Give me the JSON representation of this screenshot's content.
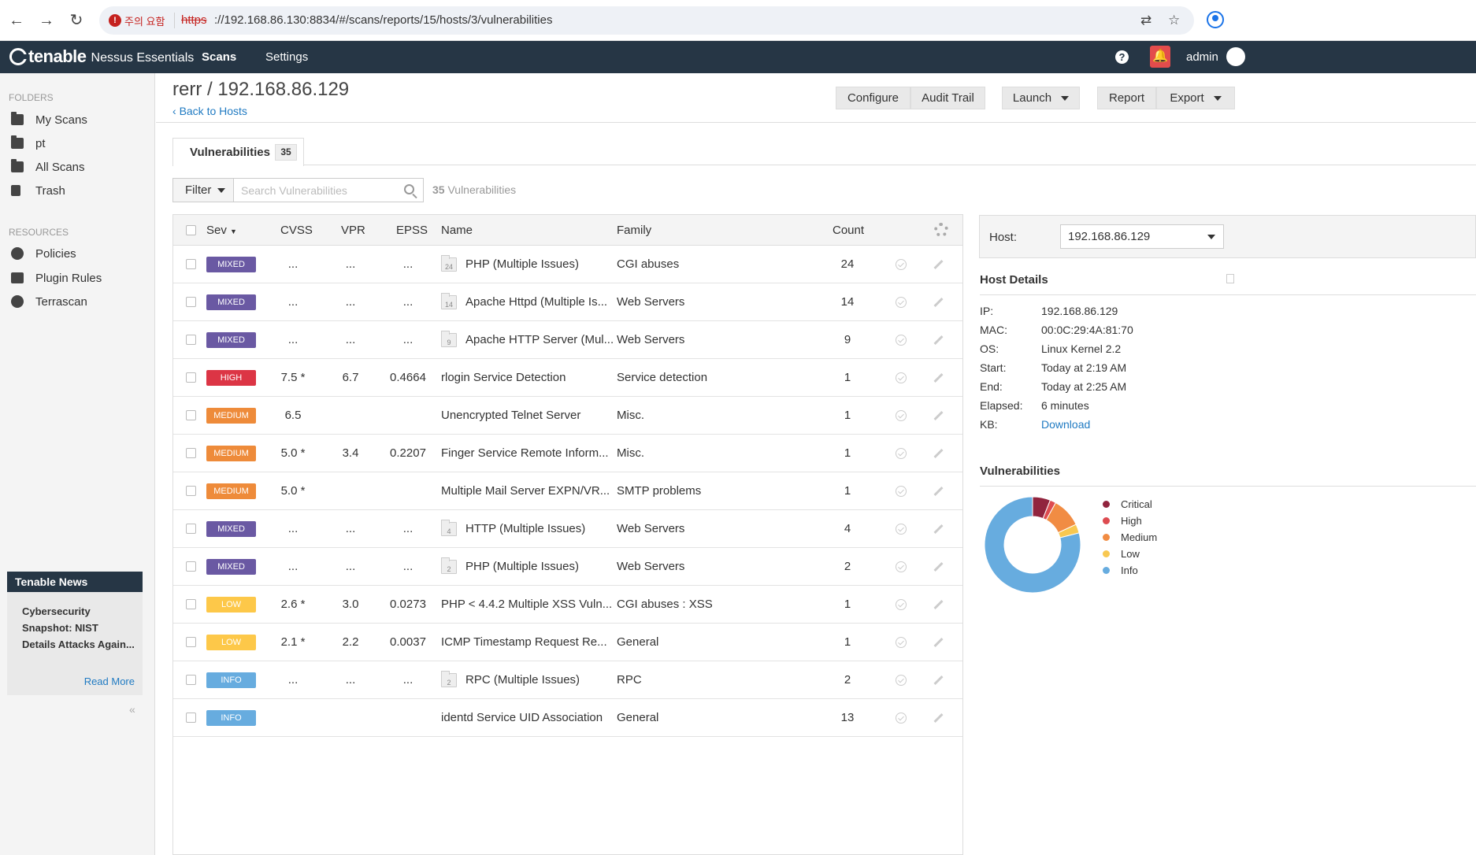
{
  "browser": {
    "warning": "주의 요함",
    "url_scheme": "https",
    "url_rest": "://192.168.86.130:8834/#/scans/reports/15/hosts/3/vulnerabilities"
  },
  "header": {
    "logo": "tenable",
    "product": "Nessus Essentials",
    "nav": [
      "Scans",
      "Settings"
    ],
    "user": "admin"
  },
  "sidebar": {
    "folders_label": "FOLDERS",
    "folders": [
      "My Scans",
      "pt",
      "All Scans",
      "Trash"
    ],
    "resources_label": "RESOURCES",
    "resources": [
      "Policies",
      "Plugin Rules",
      "Terrascan"
    ],
    "news_title": "Tenable News",
    "news_body": "Cybersecurity Snapshot: NIST Details Attacks Again...",
    "news_more": "Read More"
  },
  "main": {
    "title": "rerr / 192.168.86.129",
    "back": "Back to Hosts",
    "buttons": {
      "configure": "Configure",
      "audit": "Audit Trail",
      "launch": "Launch",
      "report": "Report",
      "export": "Export"
    },
    "tab_label": "Vulnerabilities",
    "tab_count": "35",
    "filter": "Filter",
    "search_placeholder": "Search Vulnerabilities",
    "count_num": "35",
    "count_label": "Vulnerabilities"
  },
  "table": {
    "headers": {
      "sev": "Sev",
      "cvss": "CVSS",
      "vpr": "VPR",
      "epss": "EPSS",
      "name": "Name",
      "family": "Family",
      "count": "Count"
    },
    "rows": [
      {
        "sev": "MIXED",
        "cvss": "...",
        "vpr": "...",
        "epss": "...",
        "group": "24",
        "name": "PHP (Multiple Issues)",
        "family": "CGI abuses",
        "count": "24"
      },
      {
        "sev": "MIXED",
        "cvss": "...",
        "vpr": "...",
        "epss": "...",
        "group": "14",
        "name": "Apache Httpd (Multiple Is...",
        "family": "Web Servers",
        "count": "14"
      },
      {
        "sev": "MIXED",
        "cvss": "...",
        "vpr": "...",
        "epss": "...",
        "group": "9",
        "name": "Apache HTTP Server (Mul...",
        "family": "Web Servers",
        "count": "9"
      },
      {
        "sev": "HIGH",
        "cvss": "7.5 *",
        "vpr": "6.7",
        "epss": "0.4664",
        "group": "",
        "name": "rlogin Service Detection",
        "family": "Service detection",
        "count": "1"
      },
      {
        "sev": "MEDIUM",
        "cvss": "6.5",
        "vpr": "",
        "epss": "",
        "group": "",
        "name": "Unencrypted Telnet Server",
        "family": "Misc.",
        "count": "1"
      },
      {
        "sev": "MEDIUM",
        "cvss": "5.0 *",
        "vpr": "3.4",
        "epss": "0.2207",
        "group": "",
        "name": "Finger Service Remote Inform...",
        "family": "Misc.",
        "count": "1"
      },
      {
        "sev": "MEDIUM",
        "cvss": "5.0 *",
        "vpr": "",
        "epss": "",
        "group": "",
        "name": "Multiple Mail Server EXPN/VR...",
        "family": "SMTP problems",
        "count": "1"
      },
      {
        "sev": "MIXED",
        "cvss": "...",
        "vpr": "...",
        "epss": "...",
        "group": "4",
        "name": "HTTP (Multiple Issues)",
        "family": "Web Servers",
        "count": "4"
      },
      {
        "sev": "MIXED",
        "cvss": "...",
        "vpr": "...",
        "epss": "...",
        "group": "2",
        "name": "PHP (Multiple Issues)",
        "family": "Web Servers",
        "count": "2"
      },
      {
        "sev": "LOW",
        "cvss": "2.6 *",
        "vpr": "3.0",
        "epss": "0.0273",
        "group": "",
        "name": "PHP < 4.4.2 Multiple XSS Vuln...",
        "family": "CGI abuses : XSS",
        "count": "1"
      },
      {
        "sev": "LOW",
        "cvss": "2.1 *",
        "vpr": "2.2",
        "epss": "0.0037",
        "group": "",
        "name": "ICMP Timestamp Request Re...",
        "family": "General",
        "count": "1"
      },
      {
        "sev": "INFO",
        "cvss": "...",
        "vpr": "...",
        "epss": "...",
        "group": "2",
        "name": "RPC (Multiple Issues)",
        "family": "RPC",
        "count": "2"
      },
      {
        "sev": "INFO",
        "cvss": "",
        "vpr": "",
        "epss": "",
        "group": "",
        "name": "identd Service UID Association",
        "family": "General",
        "count": "13"
      }
    ]
  },
  "severity_colors": {
    "MIXED": "#6a59a3",
    "HIGH": "#dc3545",
    "MEDIUM": "#ee8b3a",
    "LOW": "#fdc849",
    "INFO": "#67acdf"
  },
  "host_panel": {
    "host_label": "Host:",
    "host_value": "192.168.86.129",
    "details_title": "Host Details",
    "details": [
      {
        "k": "IP:",
        "v": "192.168.86.129"
      },
      {
        "k": "MAC:",
        "v": "00:0C:29:4A:81:70"
      },
      {
        "k": "OS:",
        "v": "Linux Kernel 2.2"
      },
      {
        "k": "Start:",
        "v": "Today at 2:19 AM"
      },
      {
        "k": "End:",
        "v": "Today at 2:25 AM"
      },
      {
        "k": "Elapsed:",
        "v": "6 minutes"
      },
      {
        "k": "KB:",
        "v": "Download"
      }
    ],
    "vuln_title": "Vulnerabilities",
    "legend": [
      {
        "label": "Critical",
        "color": "#91243e"
      },
      {
        "label": "High",
        "color": "#dd4b50"
      },
      {
        "label": "Medium",
        "color": "#f18c43"
      },
      {
        "label": "Low",
        "color": "#f8c851"
      },
      {
        "label": "Info",
        "color": "#67acdf"
      }
    ],
    "donut_values": [
      6,
      2,
      10,
      3,
      79
    ]
  }
}
